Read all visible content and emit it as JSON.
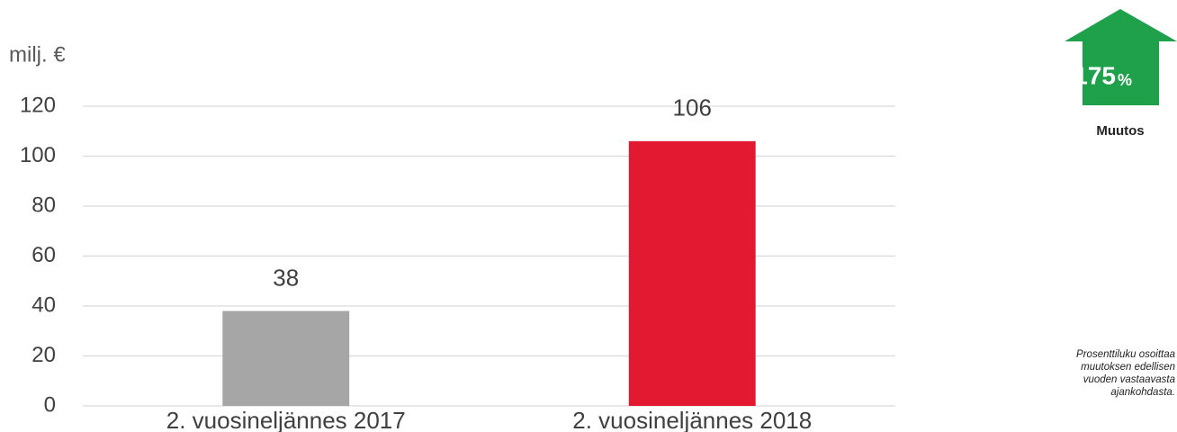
{
  "chart_data": {
    "type": "bar",
    "axis_unit": "milj. €",
    "categories": [
      "2. vuosineljännes 2017",
      "2. vuosineljännes 2018"
    ],
    "values": [
      38,
      106
    ],
    "colors": [
      "#a6a6a6",
      "#e31931"
    ],
    "ylim": [
      0,
      120
    ],
    "yticks": [
      0,
      20,
      40,
      60,
      80,
      100,
      120
    ],
    "grid": true
  },
  "badge": {
    "value": 175,
    "unit": "%",
    "label": "Muutos",
    "color": "#1fa04a"
  },
  "note": {
    "lines": [
      "Prosenttiluku osoittaa",
      "muutoksen edellisen",
      "vuoden vastaavasta",
      "ajankohdasta."
    ]
  }
}
